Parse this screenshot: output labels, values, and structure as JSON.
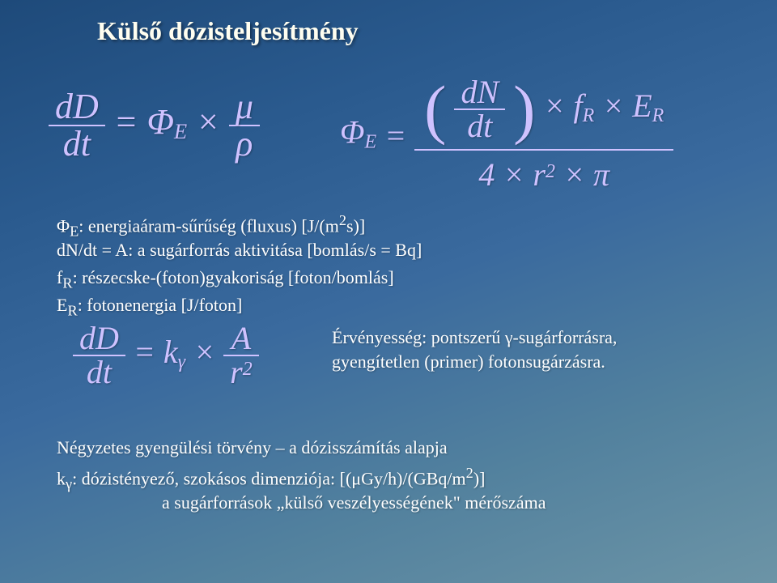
{
  "title": "Külső dózisteljesítmény",
  "formula1": {
    "lhs_num": "dD",
    "lhs_den": "dt",
    "eq": "=",
    "phi": "Φ",
    "phi_sub": "E",
    "times": "×",
    "mu": "μ",
    "rho": "ρ"
  },
  "formula2": {
    "phi": "Φ",
    "phi_sub": "E",
    "eq": "=",
    "lparen": "(",
    "rparen": ")",
    "dn": "dN",
    "dt": "dt",
    "times1": "×",
    "f": "f",
    "f_sub": "R",
    "times2": "×",
    "E": "E",
    "E_sub": "R",
    "den_4": "4",
    "den_x1": "×",
    "den_r": "r",
    "den_r_sup": "2",
    "den_x2": "×",
    "den_pi": "π"
  },
  "lines": {
    "l1": "ΦE: energiaáram-sűrűség (fluxus) [J/(m²s)]",
    "l2": "dN/dt = A: a sugárforrás aktivitása [bomlás/s = Bq]",
    "l3": "fR: részecske-(foton)gyakoriság [foton/bomlás]",
    "l4": "ER: fotonenergia [J/foton]"
  },
  "formula3": {
    "lhs_num": "dD",
    "lhs_den": "dt",
    "eq": "=",
    "k": "k",
    "k_sub": "γ",
    "times": "×",
    "A": "A",
    "r": "r",
    "r_sup": "2"
  },
  "validity": {
    "v1": "Érvényesség: pontszerű γ-sugárforrásra,",
    "v2": "gyengítetlen (primer) fotonsugárzásra."
  },
  "law": {
    "law1": "Négyzetes gyengülési törvény – a dózisszámítás alapja",
    "law2": "kγ: dózistényező, szokásos dimenziója: [(μGy/h)/(GBq/m²)]",
    "law3": "a sugárforrások „külső veszélyességének\" mérőszáma"
  },
  "colors": {
    "bg_top": "#1e4a7a",
    "bg_bottom": "#6c94a6",
    "title_color": "#fffef0",
    "formula_color": "#cfc2ff",
    "text_color": "#ffffff"
  },
  "fonts": {
    "title_size": 32,
    "formula_size": 44,
    "body_size": 22,
    "family": "Times New Roman"
  }
}
